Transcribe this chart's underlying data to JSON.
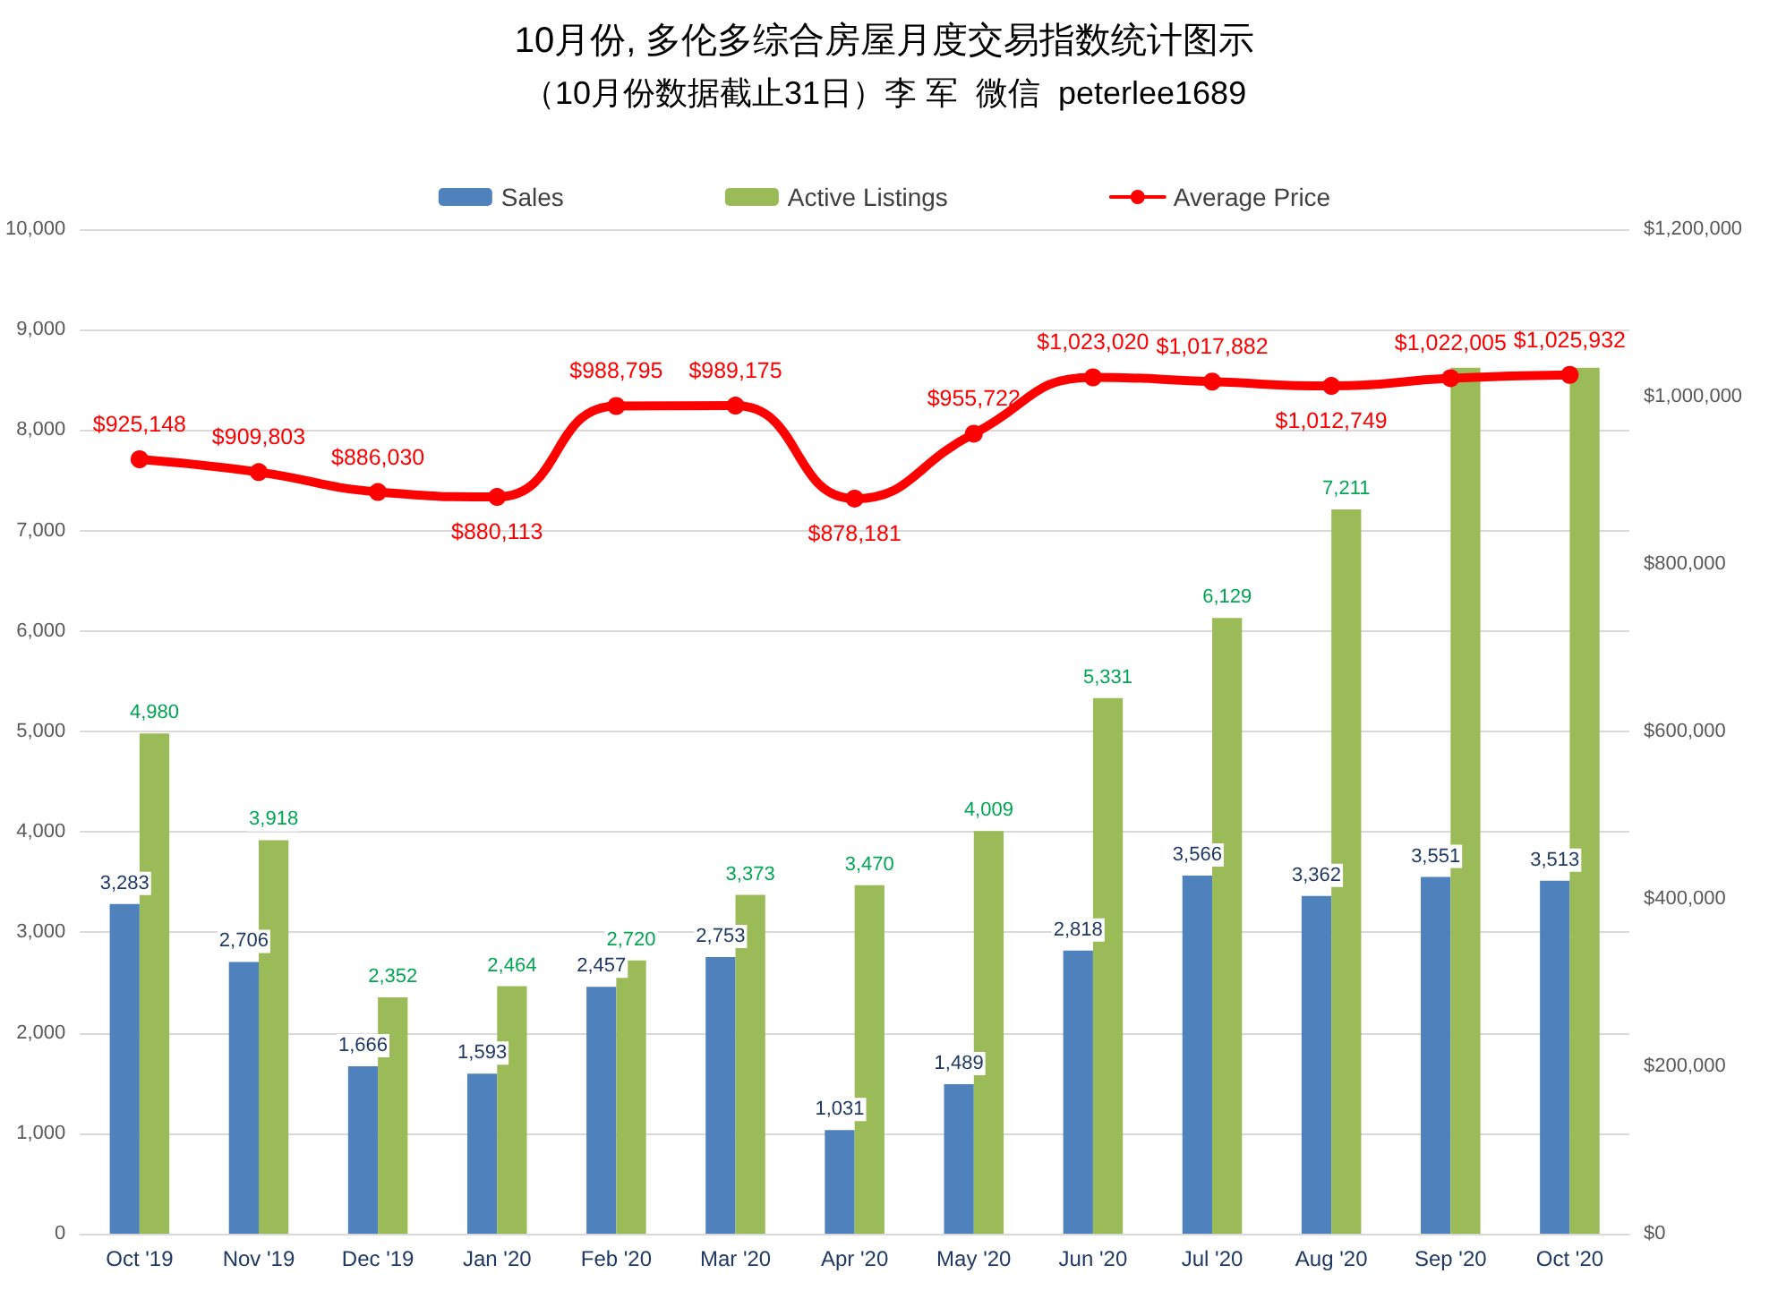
{
  "chart_data": {
    "type": "bar",
    "title": "10月份, 多伦多综合房屋月度交易指数统计图示",
    "subtitle": "（10月份数据截止31日）李 军  微信  peterlee1689",
    "categories": [
      "Oct '19",
      "Nov '19",
      "Dec '19",
      "Jan '20",
      "Feb '20",
      "Mar '20",
      "Apr '20",
      "May '20",
      "Jun '20",
      "Jul '20",
      "Aug '20",
      "Sep '20",
      "Oct '20"
    ],
    "series": [
      {
        "name": "Sales",
        "color": "#4f81bd",
        "values": [
          3283,
          2706,
          1666,
          1593,
          2457,
          2753,
          1031,
          1489,
          2818,
          3566,
          3362,
          3551,
          3513
        ],
        "value_labels": [
          "3,283",
          "2,706",
          "1,666",
          "1,593",
          "2,457",
          "2,753",
          "1,031",
          "1,489",
          "2,818",
          "3,566",
          "3,362",
          "3,551",
          "3,513"
        ]
      },
      {
        "name": "Active Listings",
        "color": "#9bbb59",
        "values": [
          4980,
          3918,
          2352,
          2464,
          2720,
          3373,
          3470,
          4009,
          5331,
          6129,
          7211,
          8620,
          8620
        ],
        "value_labels": [
          "4,980",
          "3,918",
          "2,352",
          "2,464",
          "2,720",
          "3,373",
          "3,470",
          "4,009",
          "5,331",
          "6,129",
          "7,211",
          null,
          null
        ]
      },
      {
        "name": "Average Price",
        "type": "line",
        "axis": "y2",
        "color": "#ff0000",
        "marker": "circle",
        "line_style": "solid",
        "values": [
          925148,
          909803,
          886030,
          880113,
          988795,
          989175,
          878181,
          955722,
          1023020,
          1017882,
          1012749,
          1022005,
          1025932
        ],
        "value_labels": [
          "$925,148",
          "$909,803",
          "$886,030",
          "$880,113",
          "$988,795",
          "$989,175",
          "$878,181",
          "$955,722",
          "$1,023,020",
          "$1,017,882",
          "$1,012,749",
          "$1,022,005",
          "$1,025,932"
        ]
      }
    ],
    "ylim": [
      0,
      10000
    ],
    "yticks": [
      0,
      {
        "value": 1000,
        "label": "1,000"
      },
      {
        "value": 2000,
        "label": "2,000"
      },
      {
        "value": 3000,
        "label": "3,000"
      },
      {
        "value": 4000,
        "label": "4,000"
      },
      {
        "value": 5000,
        "label": "5,000"
      },
      {
        "value": 6000,
        "label": "6,000"
      },
      {
        "value": 7000,
        "label": "7,000"
      },
      {
        "value": 8000,
        "label": "8,000"
      },
      {
        "value": 9000,
        "label": "9,000"
      },
      {
        "value": 10000,
        "label": "10,000"
      }
    ],
    "y2lim": [
      0,
      1200000
    ],
    "y2ticks": [
      {
        "value": 0,
        "label": "$0"
      },
      {
        "value": 200000,
        "label": "$200,000"
      },
      {
        "value": 400000,
        "label": "$400,000"
      },
      {
        "value": 600000,
        "label": "$600,000"
      },
      {
        "value": 800000,
        "label": "$800,000"
      },
      {
        "value": 1000000,
        "label": "$1,000,000"
      },
      {
        "value": 1200000,
        "label": "$1,200,000"
      }
    ],
    "grid": "y",
    "legend": "top"
  }
}
